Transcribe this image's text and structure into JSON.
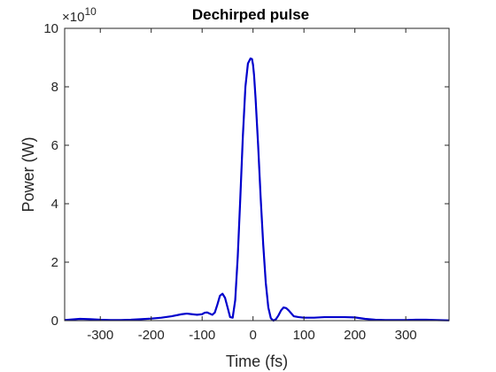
{
  "chart_data": {
    "type": "line",
    "title": "Dechirped pulse",
    "xlabel": "Time (fs)",
    "ylabel": "Power (W)",
    "y_exponent_label": "×10",
    "y_exponent_power": "10",
    "xlim": [
      -370,
      385
    ],
    "ylim": [
      0,
      10
    ],
    "y_scale_factor": 10000000000.0,
    "grid": false,
    "xticks": [
      -300,
      -200,
      -100,
      0,
      100,
      200,
      300
    ],
    "xtick_labels": [
      "-300",
      "-200",
      "-100",
      "0",
      "100",
      "200",
      "300"
    ],
    "yticks": [
      0,
      2,
      4,
      6,
      8,
      10
    ],
    "ytick_labels": [
      "0",
      "2",
      "4",
      "6",
      "8",
      "10"
    ],
    "series": [
      {
        "color": "#0000cc",
        "x": [
          -370,
          -340,
          -320,
          -300,
          -280,
          -260,
          -240,
          -220,
          -200,
          -180,
          -160,
          -140,
          -130,
          -120,
          -110,
          -100,
          -95,
          -90,
          -85,
          -80,
          -75,
          -70,
          -65,
          -60,
          -55,
          -50,
          -45,
          -40,
          -35,
          -30,
          -25,
          -20,
          -15,
          -10,
          -5,
          -2,
          0,
          2,
          5,
          10,
          15,
          20,
          25,
          30,
          35,
          40,
          45,
          50,
          55,
          60,
          65,
          70,
          75,
          80,
          90,
          100,
          120,
          140,
          160,
          180,
          200,
          220,
          240,
          260,
          280,
          300,
          320,
          340,
          360,
          385
        ],
        "y": [
          0.02,
          0.06,
          0.05,
          0.03,
          0.02,
          0.02,
          0.03,
          0.05,
          0.07,
          0.1,
          0.15,
          0.22,
          0.24,
          0.22,
          0.2,
          0.22,
          0.27,
          0.28,
          0.24,
          0.2,
          0.28,
          0.55,
          0.85,
          0.92,
          0.78,
          0.45,
          0.12,
          0.1,
          0.7,
          2.2,
          4.2,
          6.3,
          8.0,
          8.8,
          8.97,
          8.95,
          8.75,
          8.4,
          7.6,
          6.0,
          4.2,
          2.6,
          1.3,
          0.45,
          0.08,
          0.0,
          0.05,
          0.18,
          0.35,
          0.45,
          0.43,
          0.35,
          0.25,
          0.15,
          0.12,
          0.1,
          0.1,
          0.12,
          0.12,
          0.12,
          0.11,
          0.06,
          0.03,
          0.02,
          0.02,
          0.02,
          0.03,
          0.03,
          0.02,
          0.01
        ]
      }
    ]
  }
}
